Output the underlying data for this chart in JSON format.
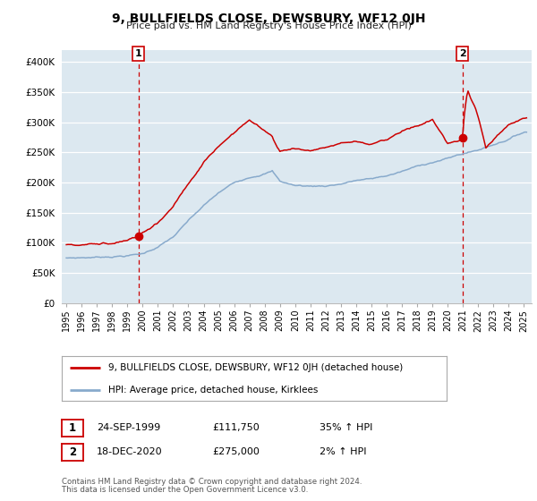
{
  "title": "9, BULLFIELDS CLOSE, DEWSBURY, WF12 0JH",
  "subtitle": "Price paid vs. HM Land Registry's House Price Index (HPI)",
  "legend_line1": "9, BULLFIELDS CLOSE, DEWSBURY, WF12 0JH (detached house)",
  "legend_line2": "HPI: Average price, detached house, Kirklees",
  "footer1": "Contains HM Land Registry data © Crown copyright and database right 2024.",
  "footer2": "This data is licensed under the Open Government Licence v3.0.",
  "sale1_label": "1",
  "sale1_date": "24-SEP-1999",
  "sale1_price": "£111,750",
  "sale1_hpi": "35% ↑ HPI",
  "sale1_x": 1999.73,
  "sale1_y": 111750,
  "sale2_label": "2",
  "sale2_date": "18-DEC-2020",
  "sale2_price": "£275,000",
  "sale2_hpi": "2% ↑ HPI",
  "sale2_x": 2020.96,
  "sale2_y": 275000,
  "red_color": "#cc0000",
  "blue_color": "#88aacc",
  "background_color": "#dce8f0",
  "grid_color": "#ffffff",
  "ylim": [
    0,
    420000
  ],
  "xlim_start": 1994.7,
  "xlim_end": 2025.5,
  "yticks": [
    0,
    50000,
    100000,
    150000,
    200000,
    250000,
    300000,
    350000,
    400000
  ],
  "ytick_labels": [
    "£0",
    "£50K",
    "£100K",
    "£150K",
    "£200K",
    "£250K",
    "£300K",
    "£350K",
    "£400K"
  ],
  "xticks": [
    1995,
    1996,
    1997,
    1998,
    1999,
    2000,
    2001,
    2002,
    2003,
    2004,
    2005,
    2006,
    2007,
    2008,
    2009,
    2010,
    2011,
    2012,
    2013,
    2014,
    2015,
    2016,
    2017,
    2018,
    2019,
    2020,
    2021,
    2022,
    2023,
    2024,
    2025
  ]
}
